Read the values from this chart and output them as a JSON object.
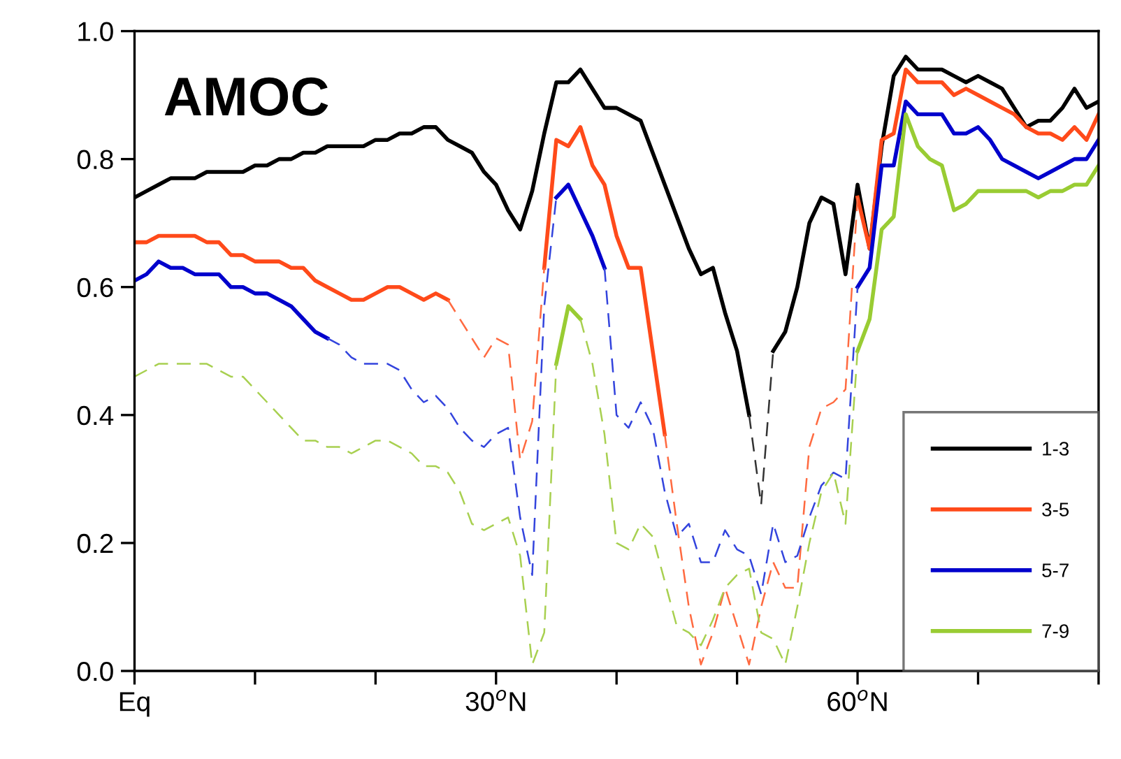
{
  "chart_data": {
    "type": "line",
    "title": "AMOC",
    "x": [
      0,
      1,
      2,
      3,
      4,
      5,
      6,
      7,
      8,
      9,
      10,
      11,
      12,
      13,
      14,
      15,
      16,
      17,
      18,
      19,
      20,
      21,
      22,
      23,
      24,
      25,
      26,
      27,
      28,
      29,
      30,
      31,
      32,
      33,
      34,
      35,
      36,
      37,
      38,
      39,
      40,
      41,
      42,
      43,
      44,
      45,
      46,
      47,
      48,
      49,
      50,
      51,
      52,
      53,
      54,
      55,
      56,
      57,
      58,
      59,
      60,
      61,
      62,
      63,
      64,
      65,
      66,
      67,
      68,
      69,
      70,
      71,
      72,
      73,
      74,
      75,
      76,
      77,
      78,
      79,
      80
    ],
    "xlim": [
      0,
      80
    ],
    "xticks": [
      {
        "value": 0,
        "label": "Eq"
      },
      {
        "value": 10,
        "label": null
      },
      {
        "value": 20,
        "label": null
      },
      {
        "value": 30,
        "label": "30$^{o}$N"
      },
      {
        "value": 40,
        "label": null
      },
      {
        "value": 50,
        "label": null
      },
      {
        "value": 60,
        "label": "60$^{o}$N"
      },
      {
        "value": 70,
        "label": null
      },
      {
        "value": 80,
        "label": null
      }
    ],
    "ylim": [
      0,
      1
    ],
    "yticks": [
      {
        "value": 0,
        "label": "0.0"
      },
      0.2,
      0.4,
      0.6,
      0.8,
      {
        "value": 1,
        "label": "1.0"
      }
    ],
    "grid": false,
    "legend": "bottom right",
    "marker": "none",
    "series": [
      {
        "name": "1-3",
        "color": "#000000",
        "line_style": "solid",
        "values": [
          0.74,
          0.75,
          0.76,
          0.77,
          0.77,
          0.77,
          0.78,
          0.78,
          0.78,
          0.78,
          0.79,
          0.79,
          0.8,
          0.8,
          0.81,
          0.81,
          0.82,
          0.82,
          0.82,
          0.82,
          0.83,
          0.83,
          0.84,
          0.84,
          0.85,
          0.85,
          0.83,
          0.82,
          0.81,
          0.78,
          0.76,
          0.72,
          0.69,
          0.75,
          0.84,
          0.92,
          0.92,
          0.94,
          0.91,
          0.88,
          0.88,
          0.87,
          0.86,
          0.81,
          0.76,
          0.71,
          0.66,
          0.62,
          0.63,
          0.56,
          0.5,
          0.4,
          null,
          0.5,
          0.53,
          0.6,
          0.7,
          0.74,
          0.73,
          0.62,
          0.76,
          0.66,
          0.82,
          0.93,
          0.96,
          0.94,
          0.94,
          0.94,
          0.93,
          0.92,
          0.93,
          0.92,
          0.91,
          0.88,
          0.85,
          0.86,
          0.86,
          0.88,
          0.91,
          0.88,
          0.89
        ]
      },
      {
        "name": "3-5",
        "color": "#ff4a1a",
        "line_style": "solid",
        "values": [
          0.67,
          0.67,
          0.68,
          0.68,
          0.68,
          0.68,
          0.67,
          0.67,
          0.65,
          0.65,
          0.64,
          0.64,
          0.64,
          0.63,
          0.63,
          0.61,
          0.6,
          0.59,
          0.58,
          0.58,
          0.59,
          0.6,
          0.6,
          0.59,
          0.58,
          0.59,
          0.58,
          null,
          null,
          null,
          null,
          null,
          null,
          null,
          0.63,
          0.83,
          0.82,
          0.85,
          0.79,
          0.76,
          0.68,
          0.63,
          0.63,
          0.5,
          0.37,
          null,
          null,
          null,
          null,
          null,
          null,
          null,
          null,
          null,
          null,
          null,
          null,
          null,
          null,
          null,
          0.74,
          0.66,
          0.83,
          0.84,
          0.94,
          0.92,
          0.92,
          0.92,
          0.9,
          0.91,
          0.9,
          0.89,
          0.88,
          0.87,
          0.85,
          0.84,
          0.84,
          0.83,
          0.85,
          0.83,
          0.87
        ]
      },
      {
        "name": "5-7",
        "color": "#0000cc",
        "line_style": "solid",
        "values": [
          0.61,
          0.62,
          0.64,
          0.63,
          0.63,
          0.62,
          0.62,
          0.62,
          0.6,
          0.6,
          0.59,
          0.59,
          0.58,
          0.57,
          0.55,
          0.53,
          0.52,
          null,
          null,
          null,
          null,
          null,
          null,
          null,
          null,
          null,
          null,
          null,
          null,
          null,
          null,
          null,
          null,
          null,
          null,
          0.74,
          0.76,
          0.72,
          0.68,
          0.63,
          null,
          null,
          null,
          null,
          null,
          null,
          null,
          null,
          null,
          null,
          null,
          null,
          null,
          null,
          null,
          null,
          null,
          null,
          null,
          null,
          0.6,
          0.63,
          0.79,
          0.79,
          0.89,
          0.87,
          0.87,
          0.87,
          0.84,
          0.84,
          0.85,
          0.83,
          0.8,
          0.79,
          0.78,
          0.77,
          0.78,
          0.79,
          0.8,
          0.8,
          0.83
        ]
      },
      {
        "name": "7-9",
        "color": "#99cc33",
        "line_style": "solid",
        "values": [
          null,
          null,
          null,
          null,
          null,
          null,
          null,
          null,
          null,
          null,
          null,
          null,
          null,
          null,
          null,
          null,
          null,
          null,
          null,
          null,
          null,
          null,
          null,
          null,
          null,
          null,
          null,
          null,
          null,
          null,
          null,
          null,
          null,
          null,
          null,
          0.48,
          0.57,
          0.55,
          null,
          null,
          null,
          null,
          null,
          null,
          null,
          null,
          null,
          null,
          null,
          null,
          null,
          null,
          null,
          null,
          null,
          null,
          null,
          null,
          null,
          null,
          0.5,
          0.55,
          0.69,
          0.71,
          0.87,
          0.82,
          0.8,
          0.79,
          0.72,
          0.73,
          0.75,
          0.75,
          0.75,
          0.75,
          0.75,
          0.74,
          0.75,
          0.75,
          0.76,
          0.76,
          0.79
        ]
      },
      {
        "color": "#333333",
        "line_style": "dashed",
        "x": [
          51,
          52,
          53
        ],
        "values": [
          0.4,
          0.26,
          0.5
        ]
      },
      {
        "color": "#ff6a40",
        "line_style": "dashed",
        "x": [
          26,
          27,
          28,
          29,
          30,
          31,
          32,
          33,
          34
        ],
        "values": [
          0.58,
          0.55,
          0.52,
          0.49,
          0.52,
          0.51,
          0.33,
          0.39,
          0.63
        ]
      },
      {
        "color": "#ff6a40",
        "line_style": "dashed",
        "x": [
          44,
          45,
          46,
          47,
          48,
          49,
          50,
          51,
          52,
          53,
          54,
          55,
          56,
          57,
          58,
          59,
          60
        ],
        "values": [
          0.37,
          0.23,
          0.1,
          0.01,
          0.06,
          0.13,
          0.07,
          0.01,
          0.1,
          0.17,
          0.13,
          0.13,
          0.35,
          0.41,
          0.42,
          0.44,
          0.74
        ]
      },
      {
        "color": "#3344dd",
        "line_style": "dashed",
        "x": [
          16,
          17,
          18,
          19,
          20,
          21,
          22,
          23,
          24,
          25,
          26,
          27,
          28,
          29,
          30,
          31,
          32,
          33,
          34,
          35
        ],
        "values": [
          0.52,
          0.51,
          0.49,
          0.48,
          0.48,
          0.48,
          0.47,
          0.44,
          0.42,
          0.43,
          0.41,
          0.38,
          0.36,
          0.35,
          0.37,
          0.38,
          0.24,
          0.15,
          0.57,
          0.74
        ]
      },
      {
        "color": "#3344dd",
        "line_style": "dashed",
        "x": [
          39,
          40,
          41,
          42,
          43,
          44,
          45,
          46,
          47,
          48,
          49,
          50,
          51,
          52,
          53,
          54,
          55,
          56,
          57,
          58,
          59,
          60
        ],
        "values": [
          0.63,
          0.4,
          0.38,
          0.42,
          0.38,
          0.28,
          0.21,
          0.23,
          0.17,
          0.17,
          0.22,
          0.19,
          0.18,
          0.12,
          0.23,
          0.17,
          0.18,
          0.24,
          0.29,
          0.31,
          0.3,
          0.6
        ]
      },
      {
        "color": "#a8d050",
        "line_style": "dashed",
        "x": [
          0,
          1,
          2,
          3,
          4,
          5,
          6,
          7,
          8,
          9,
          10,
          11,
          12,
          13,
          14,
          15,
          16,
          17,
          18,
          19,
          20,
          21,
          22,
          23,
          24,
          25,
          26,
          27,
          28,
          29,
          30,
          31,
          32,
          33,
          34,
          35
        ],
        "values": [
          0.46,
          0.47,
          0.48,
          0.48,
          0.48,
          0.48,
          0.48,
          0.47,
          0.46,
          0.46,
          0.44,
          0.42,
          0.4,
          0.38,
          0.36,
          0.36,
          0.35,
          0.35,
          0.34,
          0.35,
          0.36,
          0.36,
          0.35,
          0.34,
          0.32,
          0.32,
          0.31,
          0.28,
          0.23,
          0.22,
          0.23,
          0.24,
          0.18,
          0.01,
          0.06,
          0.48
        ]
      },
      {
        "color": "#a8d050",
        "line_style": "dashed",
        "x": [
          37,
          38,
          39,
          40,
          41,
          42,
          43,
          44,
          45,
          46,
          47,
          48,
          49,
          50,
          51,
          52,
          53,
          54,
          55,
          56,
          57,
          58,
          59,
          60
        ],
        "values": [
          0.55,
          0.48,
          0.37,
          0.2,
          0.19,
          0.23,
          0.21,
          0.14,
          0.07,
          0.06,
          0.04,
          0.08,
          0.13,
          0.15,
          0.16,
          0.06,
          0.05,
          0.01,
          0.1,
          0.2,
          0.28,
          0.31,
          0.23,
          0.5
        ]
      }
    ]
  }
}
